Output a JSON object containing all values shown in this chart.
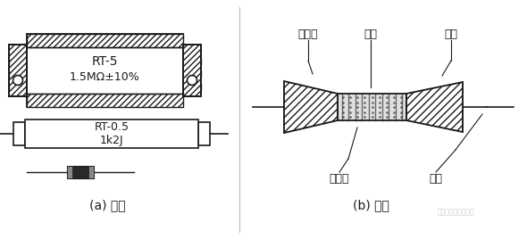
{
  "bg_color": "#ffffff",
  "line_color": "#1a1a1a",
  "label_a": "(a) 外形",
  "label_b": "(b) 结构",
  "text_rt5": "RT-5",
  "text_rt5_val": "1.5MΩ±10%",
  "text_rt05": "RT-0.5",
  "text_rt05_val": "1k2J",
  "label_baohu": "保护漆",
  "label_citang": "瓷棒",
  "label_mangai": "帽盖",
  "label_tanmo": "碳膜层",
  "label_yinxian": "引线",
  "watermark": "免费淡子电子设计图"
}
